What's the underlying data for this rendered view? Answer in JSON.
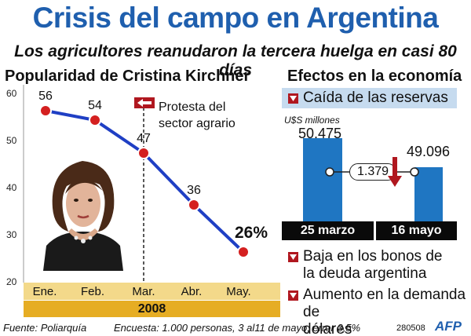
{
  "header": {
    "title": "Crisis del campo en Argentina",
    "subtitle": "Los agricultores reanudaron la tercera huelga en casi 80 días"
  },
  "left_panel": {
    "title": "Popularidad de Cristina Kirchner",
    "annotation_line1": "Protesta del",
    "annotation_line2": "sector agrario",
    "year_label": "2008"
  },
  "right_panel": {
    "title": "Efectos en la economía",
    "item1": "Caída de las reservas",
    "units": "U$S millones",
    "value_left": "50.475",
    "value_right": "49.096",
    "difference": "1.379",
    "date_left": "25 marzo",
    "date_right": "16 mayo",
    "item2_line1": "Baja en los bonos de",
    "item2_line2": "la deuda argentina",
    "item3_line1": "Aumento en la demanda de",
    "item3_line2": "dólares"
  },
  "footer": {
    "source": "Fuente: Poliarquía",
    "survey": "Encuesta: 1.000 personas, 3 al11 de mayo, error 3,5%",
    "code": "280508",
    "agency": "AFP"
  },
  "colors": {
    "title_blue": "#1f5fae",
    "line_blue": "#1f3fc4",
    "point_red": "#d42020",
    "bar_blue": "#1f76c2",
    "band_light": "#f3d98a",
    "band_dark": "#e6ad24",
    "bullet_red": "#b0171f"
  },
  "chart_data": [
    {
      "type": "line",
      "title": "Popularidad de Cristina Kirchner",
      "xlabel": "2008",
      "ylabel": "",
      "categories": [
        "Ene.",
        "Feb.",
        "Mar.",
        "Abr.",
        "May."
      ],
      "values": [
        56,
        54,
        47,
        36,
        26
      ],
      "data_labels": [
        "56",
        "54",
        "47",
        "36",
        "26%"
      ],
      "ylim": [
        20,
        60
      ],
      "yticks": [
        20,
        30,
        40,
        50,
        60
      ],
      "annotation": {
        "at_category": "Mar.",
        "text": "Protesta del sector agrario"
      },
      "grid": false
    },
    {
      "type": "bar",
      "title": "Caída de las reservas",
      "ylabel": "U$S millones",
      "categories": [
        "25 marzo",
        "16 mayo"
      ],
      "values": [
        50475,
        49096
      ],
      "value_labels": [
        "50.475",
        "49.096"
      ],
      "difference_label": "1.379",
      "grid": false
    }
  ]
}
